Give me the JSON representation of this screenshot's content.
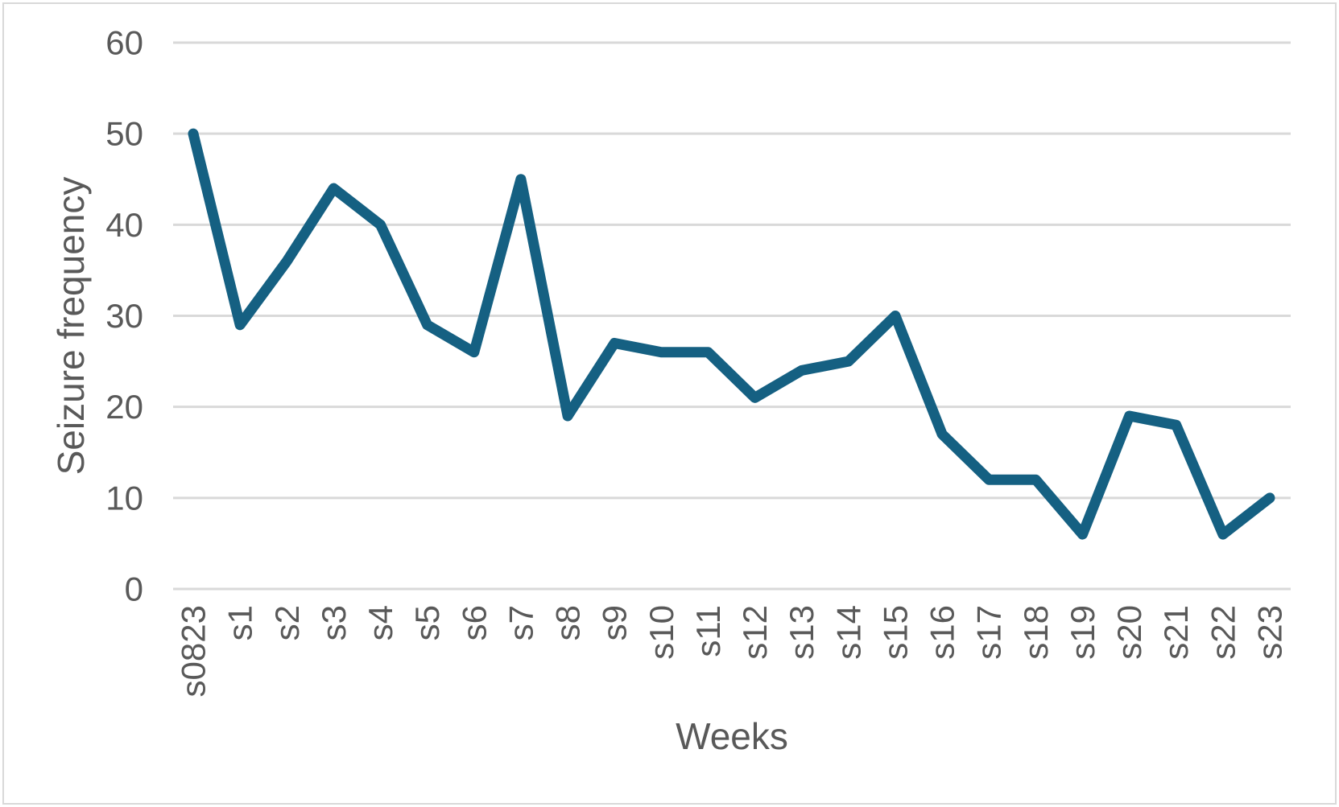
{
  "chart_data": {
    "type": "line",
    "categories": [
      "s0823",
      "s1",
      "s2",
      "s3",
      "s4",
      "s5",
      "s6",
      "s7",
      "s8",
      "s9",
      "s10",
      "s11",
      "s12",
      "s13",
      "s14",
      "s15",
      "s16",
      "s17",
      "s18",
      "s19",
      "s20",
      "s21",
      "s22",
      "s23"
    ],
    "values": [
      50,
      29,
      36,
      44,
      40,
      29,
      26,
      45,
      19,
      27,
      26,
      26,
      21,
      24,
      25,
      30,
      17,
      12,
      12,
      6,
      19,
      18,
      6,
      10
    ],
    "series": [
      {
        "name": "Seizure frequency",
        "values": [
          50,
          29,
          36,
          44,
          40,
          29,
          26,
          45,
          19,
          27,
          26,
          26,
          21,
          24,
          25,
          30,
          17,
          12,
          12,
          6,
          19,
          18,
          6,
          10
        ]
      }
    ],
    "title": "",
    "xlabel": "Weeks",
    "ylabel": "Seizure frequency",
    "ylim": [
      0,
      60
    ],
    "ytick_step": 10,
    "yticks": [
      0,
      10,
      20,
      30,
      40,
      50,
      60
    ],
    "grid": "horizontal",
    "legend": "none",
    "markers": false,
    "colors": {
      "line": "#156082",
      "gridline": "#d9d9d9",
      "text": "#595959",
      "frame_border": "#d9d9d9",
      "background": "#ffffff"
    }
  }
}
